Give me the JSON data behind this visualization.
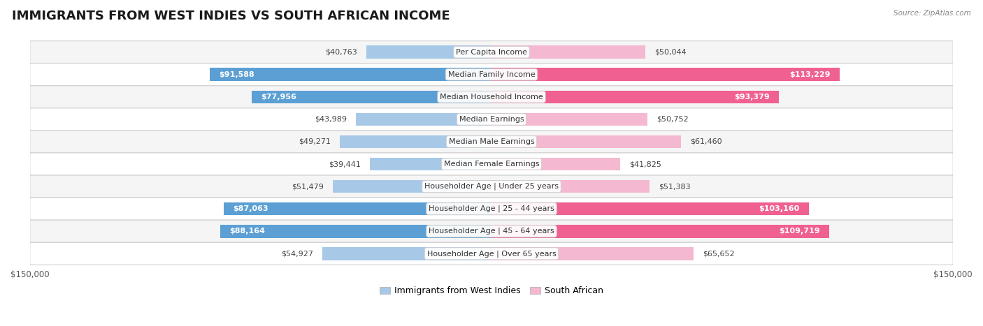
{
  "title": "IMMIGRANTS FROM WEST INDIES VS SOUTH AFRICAN INCOME",
  "source": "Source: ZipAtlas.com",
  "categories": [
    "Per Capita Income",
    "Median Family Income",
    "Median Household Income",
    "Median Earnings",
    "Median Male Earnings",
    "Median Female Earnings",
    "Householder Age | Under 25 years",
    "Householder Age | 25 - 44 years",
    "Householder Age | 45 - 64 years",
    "Householder Age | Over 65 years"
  ],
  "west_indies": [
    40763,
    91588,
    77956,
    43989,
    49271,
    39441,
    51479,
    87063,
    88164,
    54927
  ],
  "south_african": [
    50044,
    113229,
    93379,
    50752,
    61460,
    41825,
    51383,
    103160,
    109719,
    65652
  ],
  "west_indies_labels": [
    "$40,763",
    "$91,588",
    "$77,956",
    "$43,989",
    "$49,271",
    "$39,441",
    "$51,479",
    "$87,063",
    "$88,164",
    "$54,927"
  ],
  "south_african_labels": [
    "$50,044",
    "$113,229",
    "$93,379",
    "$50,752",
    "$61,460",
    "$41,825",
    "$51,383",
    "$103,160",
    "$109,719",
    "$65,652"
  ],
  "west_indies_color_light": "#a8c8e8",
  "west_indies_color_dark": "#5b9fd4",
  "south_african_color_light": "#f4b8d0",
  "south_african_color_dark": "#f06090",
  "max_value": 150000,
  "bar_height": 0.58,
  "background_color": "#ffffff",
  "row_bg_odd": "#f5f5f5",
  "row_bg_even": "#ffffff",
  "title_fontsize": 13,
  "label_fontsize": 8.0,
  "category_fontsize": 8.0,
  "legend_fontsize": 9,
  "threshold_dark_wi": 70000,
  "threshold_dark_sa": 70000,
  "row_border_color": "#d0d0d0",
  "axis_label_color": "#555555"
}
